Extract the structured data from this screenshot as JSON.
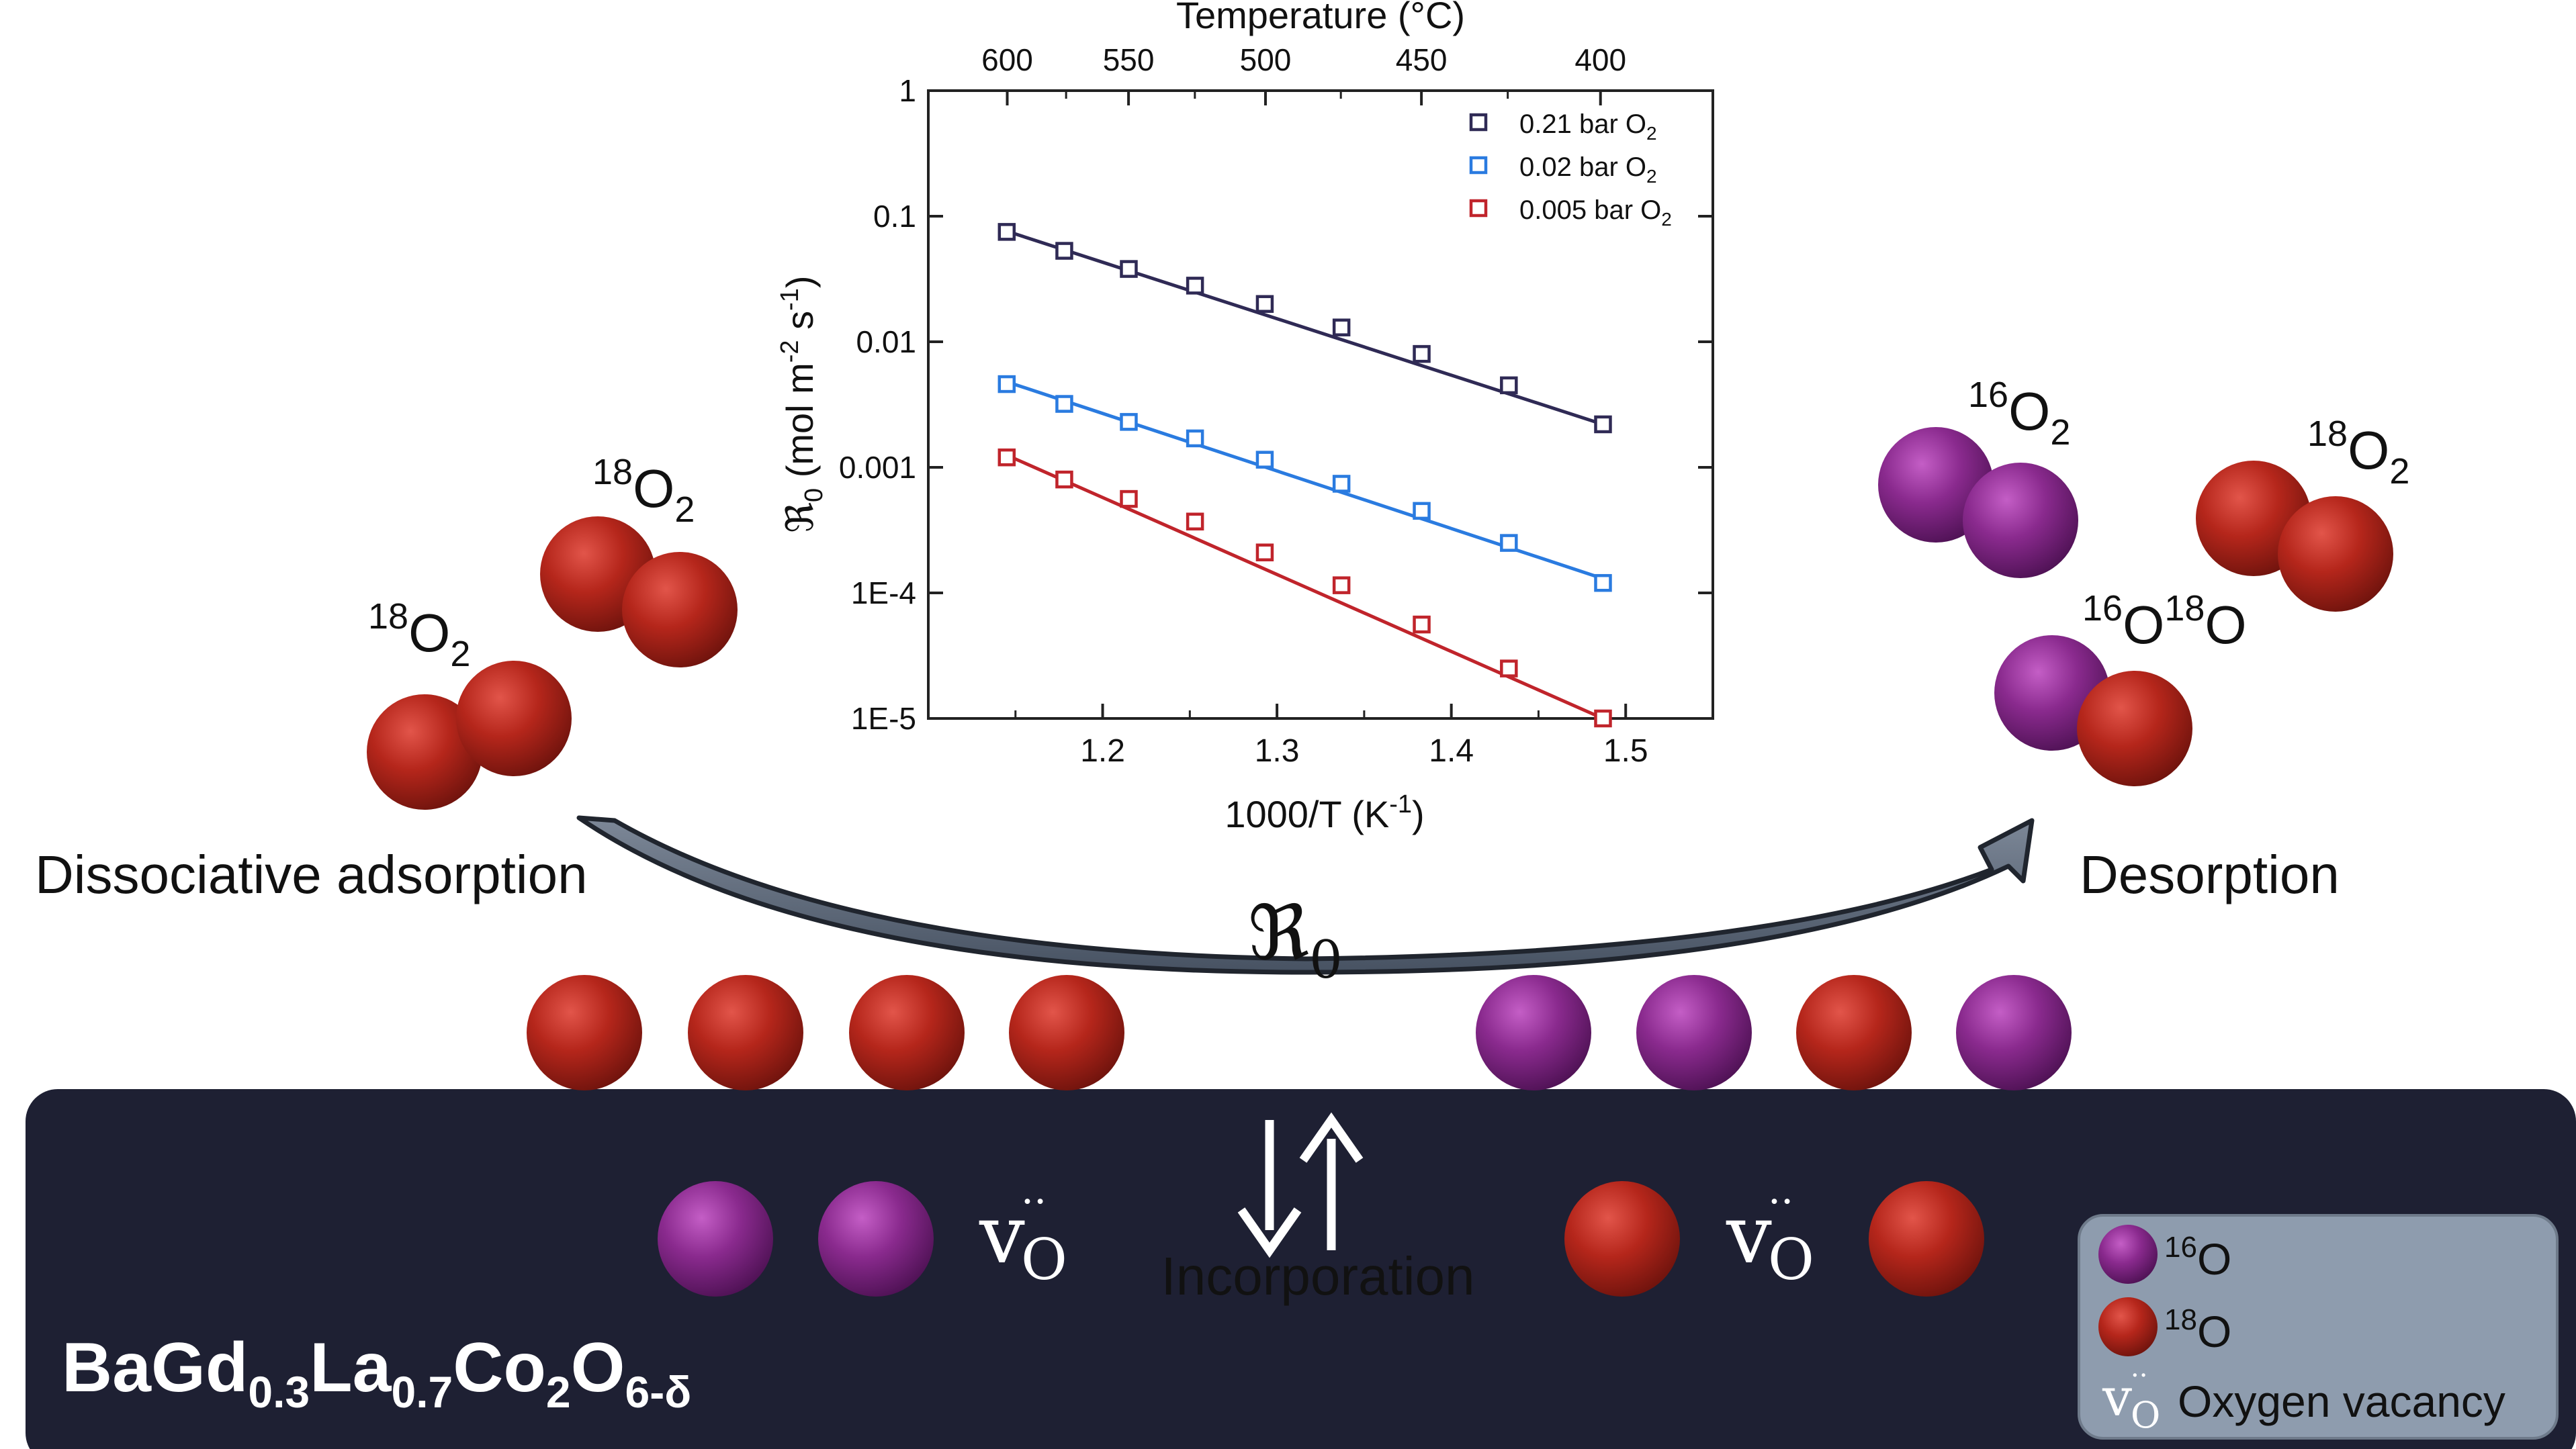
{
  "colors": {
    "o16": "#8a2a8e",
    "o18": "#b5261b",
    "bulk": "#1e2033",
    "legend_bg": "#8e9cae",
    "arrow": "#5a6576",
    "series_021": "#2f2a55",
    "series_002": "#2a7be0",
    "series_0005": "#c0242b"
  },
  "labels": {
    "left_gas_top": {
      "iso": "18",
      "el": "O",
      "sub": "2"
    },
    "left_gas_bottom": {
      "iso": "18",
      "el": "O",
      "sub": "2"
    },
    "right_gas_16": {
      "iso": "16",
      "el": "O",
      "sub": "2"
    },
    "right_gas_18": {
      "iso": "18",
      "el": "O",
      "sub": "2"
    },
    "right_mixed": {
      "iso1": "16",
      "el1": "O",
      "iso2": "18",
      "el2": "O"
    },
    "dissociative": "Dissociative adsorption",
    "desorption": "Desorption",
    "rate_symbol": "ℜ",
    "rate_sub": "0",
    "incorporation": "Incorporation",
    "vacancy_v": "v",
    "vacancy_dots": "··",
    "vacancy_sub": "O",
    "material": {
      "p1": "BaGd",
      "s1": "0.3",
      "p2": "La",
      "s2": "0.7",
      "p3": "Co",
      "s3": "2",
      "p4": "O",
      "s4": "6-δ"
    }
  },
  "legend": {
    "o16_iso": "16",
    "o16_el": "O",
    "o18_iso": "18",
    "o18_el": "O",
    "vacancy_label": "Oxygen vacancy"
  },
  "chart_data": {
    "type": "scatter",
    "title": "",
    "xlabel": "1000/T (K",
    "xlabel_sup": "-1",
    "xlabel_close": ")",
    "ylabel_sym": "ℜ",
    "ylabel_sub": "0",
    "ylabel_mid": " (mol m",
    "ylabel_sup1": "-2",
    "ylabel_s": " s",
    "ylabel_sup2": "-1",
    "ylabel_close": ")",
    "top_label": "Temperature (°C)",
    "xlim": [
      1.1,
      1.55
    ],
    "ylim": [
      1e-05,
      1
    ],
    "yscale": "log",
    "grid": false,
    "legend_position": "top-right",
    "xticks": [
      "1.2",
      "1.3",
      "1.4",
      "1.5"
    ],
    "xtick_values": [
      1.2,
      1.3,
      1.4,
      1.5
    ],
    "yticks": [
      "1E-5",
      "1E-4",
      "0.001",
      "0.01",
      "0.1",
      "1"
    ],
    "ytick_values": [
      1e-05,
      0.0001,
      0.001,
      0.01,
      0.1,
      1
    ],
    "top_ticks": [
      "600",
      "550",
      "500",
      "450",
      "400"
    ],
    "top_tick_values": [
      600,
      550,
      500,
      450,
      400
    ],
    "x": [
      1.145,
      1.178,
      1.215,
      1.253,
      1.293,
      1.337,
      1.383,
      1.433,
      1.487
    ],
    "series": [
      {
        "name": "0.21 bar O",
        "name_sub": "2",
        "color": "#2f2a55",
        "values": [
          0.075,
          0.053,
          0.038,
          0.028,
          0.02,
          0.013,
          0.008,
          0.0045,
          0.0022
        ],
        "fit": [
          0.076,
          0.0022
        ]
      },
      {
        "name": "0.02 bar O",
        "name_sub": "2",
        "color": "#2a7be0",
        "values": [
          0.0046,
          0.0032,
          0.0023,
          0.0017,
          0.00115,
          0.00074,
          0.00045,
          0.00025,
          0.00012
        ],
        "fit": [
          0.0048,
          0.00013
        ]
      },
      {
        "name": "0.005 bar O",
        "name_sub": "2",
        "color": "#c0242b",
        "values": [
          0.0012,
          0.0008,
          0.00056,
          0.00037,
          0.00021,
          0.000115,
          5.6e-05,
          2.5e-05,
          1e-05
        ],
        "fit": [
          0.00125,
          1e-05
        ]
      }
    ]
  }
}
